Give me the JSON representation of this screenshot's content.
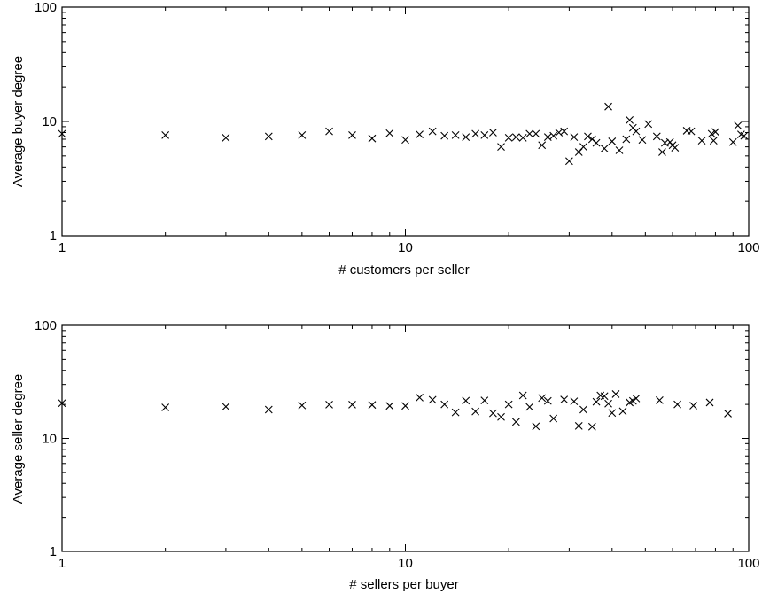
{
  "chart_data": [
    {
      "type": "scatter",
      "xscale": "log",
      "yscale": "log",
      "xlim": [
        1,
        100
      ],
      "ylim": [
        1,
        100
      ],
      "xticks": [
        "1",
        "10",
        "100"
      ],
      "yticks": [
        "1",
        "10",
        "100"
      ],
      "xlabel": "# customers per seller",
      "ylabel": "Average buyer degree",
      "marker": "x",
      "color": "#000000",
      "series": [
        {
          "points": [
            [
              1,
              7.8
            ],
            [
              2,
              7.6
            ],
            [
              3,
              7.2
            ],
            [
              4,
              7.4
            ],
            [
              5,
              7.6
            ],
            [
              6,
              8.2
            ],
            [
              7,
              7.6
            ],
            [
              8,
              7.1
            ],
            [
              9,
              7.9
            ],
            [
              10,
              6.9
            ],
            [
              11,
              7.7
            ],
            [
              12,
              8.2
            ],
            [
              13,
              7.5
            ],
            [
              14,
              7.6
            ],
            [
              15,
              7.3
            ],
            [
              16,
              7.8
            ],
            [
              17,
              7.6
            ],
            [
              18,
              8.0
            ],
            [
              19,
              6.0
            ],
            [
              20,
              7.2
            ],
            [
              21,
              7.3
            ],
            [
              22,
              7.2
            ],
            [
              23,
              7.8
            ],
            [
              24,
              7.8
            ],
            [
              25,
              6.2
            ],
            [
              26,
              7.3
            ],
            [
              27,
              7.5
            ],
            [
              28,
              8.0
            ],
            [
              29,
              8.2
            ],
            [
              30,
              4.5
            ],
            [
              31,
              7.3
            ],
            [
              32,
              5.4
            ],
            [
              33,
              6.0
            ],
            [
              34,
              7.4
            ],
            [
              35,
              7.0
            ],
            [
              36,
              6.5
            ],
            [
              38,
              5.8
            ],
            [
              39,
              13.5
            ],
            [
              40,
              6.7
            ],
            [
              42,
              5.6
            ],
            [
              44,
              7.0
            ],
            [
              45,
              10.3
            ],
            [
              46,
              8.8
            ],
            [
              47,
              8.2
            ],
            [
              49,
              6.9
            ],
            [
              51,
              9.5
            ],
            [
              54,
              7.4
            ],
            [
              56,
              5.4
            ],
            [
              57,
              6.5
            ],
            [
              59,
              6.6
            ],
            [
              60,
              6.2
            ],
            [
              61,
              5.9
            ],
            [
              66,
              8.3
            ],
            [
              68,
              8.2
            ],
            [
              73,
              6.8
            ],
            [
              78,
              7.8
            ],
            [
              79,
              6.8
            ],
            [
              80,
              8.1
            ],
            [
              90,
              6.6
            ],
            [
              93,
              9.2
            ],
            [
              95,
              7.7
            ],
            [
              97,
              7.5
            ]
          ]
        }
      ]
    },
    {
      "type": "scatter",
      "xscale": "log",
      "yscale": "log",
      "xlim": [
        1,
        100
      ],
      "ylim": [
        1,
        100
      ],
      "xticks": [
        "1",
        "10",
        "100"
      ],
      "yticks": [
        "1",
        "10",
        "100"
      ],
      "xlabel": "# sellers per buyer",
      "ylabel": "Average seller degree",
      "marker": "x",
      "color": "#000000",
      "series": [
        {
          "points": [
            [
              1,
              20.5
            ],
            [
              2,
              18.8
            ],
            [
              3,
              19.1
            ],
            [
              4,
              18.0
            ],
            [
              5,
              19.6
            ],
            [
              6,
              19.9
            ],
            [
              7,
              19.9
            ],
            [
              8,
              19.8
            ],
            [
              9,
              19.4
            ],
            [
              10,
              19.4
            ],
            [
              11,
              23.0
            ],
            [
              12,
              22.0
            ],
            [
              13,
              20.0
            ],
            [
              14,
              17.0
            ],
            [
              15,
              21.6
            ],
            [
              16,
              17.3
            ],
            [
              17,
              21.7
            ],
            [
              18,
              16.7
            ],
            [
              19,
              15.5
            ],
            [
              20,
              20.0
            ],
            [
              21,
              14.0
            ],
            [
              22,
              24.0
            ],
            [
              23,
              19.0
            ],
            [
              24,
              12.8
            ],
            [
              25,
              22.8
            ],
            [
              26,
              21.5
            ],
            [
              27,
              15.0
            ],
            [
              29,
              22.1
            ],
            [
              31,
              21.3
            ],
            [
              32,
              12.9
            ],
            [
              33,
              18.0
            ],
            [
              35,
              12.7
            ],
            [
              36,
              21.1
            ],
            [
              37,
              24.0
            ],
            [
              38,
              23.7
            ],
            [
              39,
              20.3
            ],
            [
              40,
              16.8
            ],
            [
              41,
              24.7
            ],
            [
              43,
              17.4
            ],
            [
              45,
              20.8
            ],
            [
              46,
              21.5
            ],
            [
              47,
              22.6
            ],
            [
              55,
              21.8
            ],
            [
              62,
              20.0
            ],
            [
              69,
              19.5
            ],
            [
              77,
              20.8
            ],
            [
              87,
              16.6
            ]
          ]
        }
      ]
    }
  ]
}
